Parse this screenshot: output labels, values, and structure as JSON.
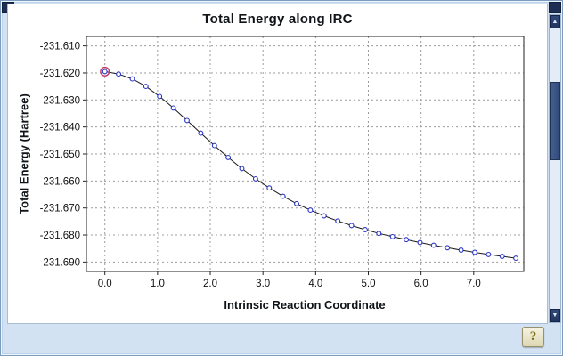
{
  "chart_data": {
    "type": "line",
    "title": "Total Energy along IRC",
    "xlabel": "Intrinsic Reaction Coordinate",
    "ylabel": "Total Energy (Hartree)",
    "xlim": [
      -0.35,
      7.95
    ],
    "ylim": [
      -231.6935,
      -231.6065
    ],
    "x_ticks": [
      0,
      1,
      2,
      3,
      4,
      5,
      6,
      7
    ],
    "x_tick_labels": [
      "0.0",
      "1.0",
      "2.0",
      "3.0",
      "4.0",
      "5.0",
      "6.0",
      "7.0"
    ],
    "y_ticks": [
      -231.61,
      -231.62,
      -231.63,
      -231.64,
      -231.65,
      -231.66,
      -231.67,
      -231.68,
      -231.69
    ],
    "y_tick_labels": [
      "-231.610",
      "-231.620",
      "-231.630",
      "-231.640",
      "-231.650",
      "-231.660",
      "-231.670",
      "-231.680",
      "-231.690"
    ],
    "grid": true,
    "grid_style": "dashed",
    "grid_color": "#9c9c9c",
    "line_color": "#1a1a1a",
    "marker_color": "#2a35c8",
    "marker_fill": "#ffffff",
    "highlight_index": 0,
    "highlight_color": "#c23565",
    "legend": false,
    "series": [
      {
        "name": "Total Energy",
        "x": [
          0,
          0.26,
          0.52,
          0.78,
          1.04,
          1.3,
          1.56,
          1.82,
          2.08,
          2.34,
          2.6,
          2.86,
          3.12,
          3.38,
          3.64,
          3.9,
          4.16,
          4.42,
          4.68,
          4.94,
          5.2,
          5.46,
          5.72,
          5.98,
          6.24,
          6.5,
          6.76,
          7.02,
          7.28,
          7.54,
          7.8
        ],
        "y": [
          -231.6195,
          -231.6204,
          -231.6222,
          -231.625,
          -231.6287,
          -231.633,
          -231.6376,
          -231.6423,
          -231.6469,
          -231.6513,
          -231.6554,
          -231.6592,
          -231.6626,
          -231.6657,
          -231.6684,
          -231.6708,
          -231.6729,
          -231.6748,
          -231.6765,
          -231.678,
          -231.6794,
          -231.6806,
          -231.6817,
          -231.6828,
          -231.6838,
          -231.6847,
          -231.6856,
          -231.6864,
          -231.6872,
          -231.6879,
          -231.6886
        ]
      }
    ]
  },
  "scrollbar": {
    "up_glyph": "▲",
    "down_glyph": "▼"
  },
  "help_button": {
    "label": "?"
  }
}
